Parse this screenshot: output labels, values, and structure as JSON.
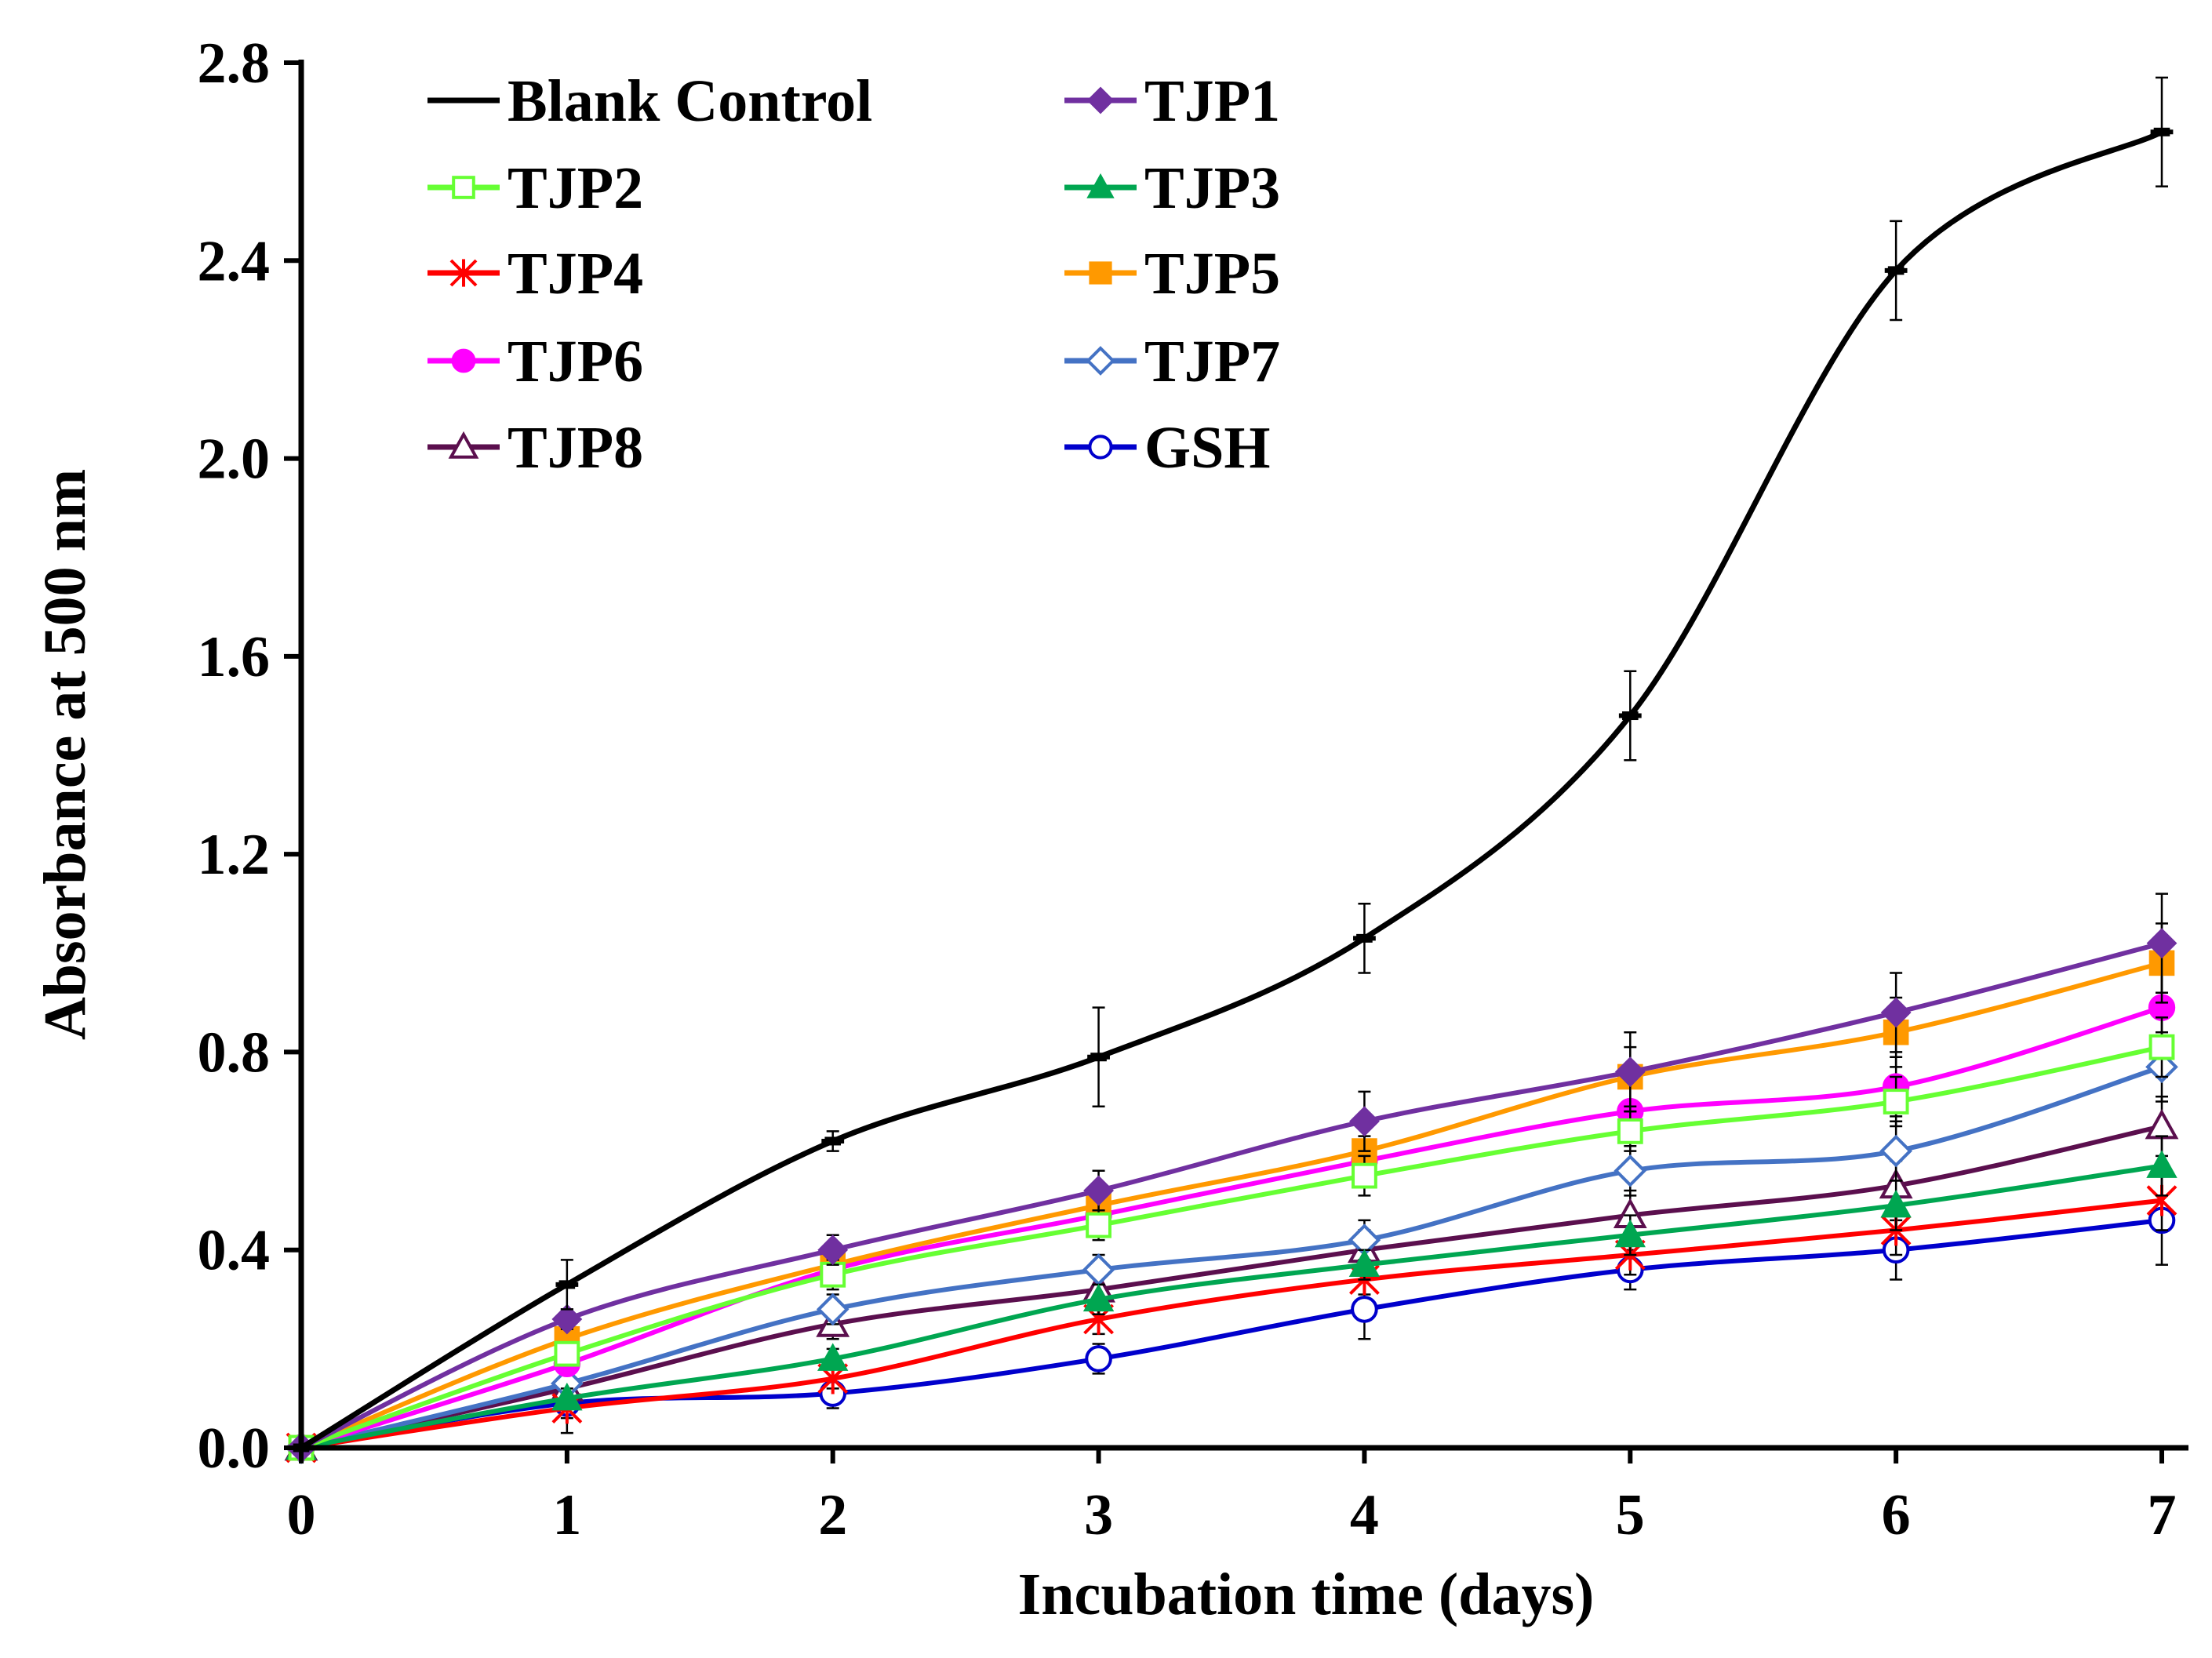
{
  "chart_data": {
    "type": "line",
    "title": "",
    "xlabel": "Incubation time (days)",
    "ylabel": "Absorbance at 500 nm",
    "x": [
      0,
      1,
      2,
      3,
      4,
      5,
      6,
      7
    ],
    "xlim": [
      0,
      7
    ],
    "ylim": [
      0,
      2.8
    ],
    "xticks": [
      "0",
      "1",
      "2",
      "3",
      "4",
      "5",
      "6",
      "7"
    ],
    "yticks": [
      "0.0",
      "0.4",
      "0.8",
      "1.2",
      "1.6",
      "2.0",
      "2.4",
      "2.8"
    ],
    "grid": false,
    "legend": "top-left, two columns",
    "series": [
      {
        "name": "Blank Control",
        "color": "#000000",
        "marker": "dash",
        "values": [
          0,
          0.33,
          0.62,
          0.79,
          1.03,
          1.48,
          2.38,
          2.66
        ],
        "errors": [
          0,
          0.05,
          0.02,
          0.1,
          0.07,
          0.09,
          0.1,
          0.11
        ]
      },
      {
        "name": "TJP1",
        "color": "#7030A0",
        "marker": "diamond-filled",
        "values": [
          0,
          0.26,
          0.4,
          0.52,
          0.66,
          0.76,
          0.88,
          1.02
        ],
        "errors": [
          0,
          0.02,
          0.03,
          0.04,
          0.06,
          0.08,
          0.08,
          0.1
        ]
      },
      {
        "name": "TJP2",
        "color": "#66FF33",
        "marker": "square-open",
        "values": [
          0,
          0.19,
          0.35,
          0.45,
          0.55,
          0.64,
          0.7,
          0.81
        ],
        "errors": [
          0,
          0.02,
          0.03,
          0.03,
          0.04,
          0.04,
          0.05,
          0.06
        ]
      },
      {
        "name": "TJP3",
        "color": "#00A651",
        "marker": "triangle-filled",
        "values": [
          0,
          0.1,
          0.18,
          0.3,
          0.37,
          0.43,
          0.49,
          0.57
        ],
        "errors": [
          0,
          0.02,
          0.02,
          0.03,
          0.03,
          0.04,
          0.05,
          0.06
        ]
      },
      {
        "name": "TJP4",
        "color": "#FF0000",
        "marker": "asterisk",
        "values": [
          0,
          0.08,
          0.14,
          0.26,
          0.34,
          0.39,
          0.44,
          0.5
        ],
        "errors": [
          0,
          0.02,
          0.02,
          0.03,
          0.03,
          0.04,
          0.05,
          0.06
        ]
      },
      {
        "name": "TJP5",
        "color": "#FF9900",
        "marker": "square-filled",
        "values": [
          0,
          0.22,
          0.37,
          0.49,
          0.6,
          0.75,
          0.84,
          0.98
        ],
        "errors": [
          0,
          0.02,
          0.03,
          0.04,
          0.05,
          0.06,
          0.07,
          0.08
        ]
      },
      {
        "name": "TJP6",
        "color": "#FF00FF",
        "marker": "circle-filled",
        "values": [
          0,
          0.17,
          0.36,
          0.47,
          0.58,
          0.68,
          0.73,
          0.89
        ],
        "errors": [
          0,
          0.02,
          0.03,
          0.04,
          0.05,
          0.05,
          0.06,
          0.07
        ]
      },
      {
        "name": "TJP7",
        "color": "#4472C4",
        "marker": "diamond-open",
        "values": [
          0,
          0.13,
          0.28,
          0.36,
          0.42,
          0.56,
          0.6,
          0.77
        ],
        "errors": [
          0,
          0.02,
          0.03,
          0.03,
          0.04,
          0.05,
          0.06,
          0.07
        ]
      },
      {
        "name": "TJP8",
        "color": "#5B0F4E",
        "marker": "triangle-open",
        "values": [
          0,
          0.12,
          0.25,
          0.32,
          0.4,
          0.47,
          0.53,
          0.65
        ],
        "errors": [
          0,
          0.02,
          0.03,
          0.03,
          0.04,
          0.05,
          0.05,
          0.06
        ]
      },
      {
        "name": "GSH",
        "color": "#0000CC",
        "marker": "circle-open",
        "values": [
          0,
          0.09,
          0.11,
          0.18,
          0.28,
          0.36,
          0.4,
          0.46
        ],
        "errors": [
          0,
          0.06,
          0.03,
          0.03,
          0.06,
          0.04,
          0.06,
          0.09
        ]
      }
    ]
  }
}
